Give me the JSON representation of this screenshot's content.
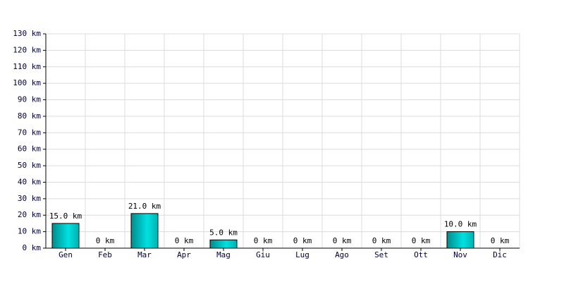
{
  "chart_data": {
    "type": "bar",
    "categories": [
      "Gen",
      "Feb",
      "Mar",
      "Apr",
      "Mag",
      "Giu",
      "Lug",
      "Ago",
      "Set",
      "Ott",
      "Nov",
      "Dic"
    ],
    "values": [
      15,
      0,
      21,
      0,
      5,
      0,
      0,
      0,
      0,
      0,
      10,
      0
    ],
    "value_labels": [
      "15.0 km",
      "0 km",
      "21.0 km",
      "0 km",
      "5.0 km",
      "0 km",
      "0 km",
      "0 km",
      "0 km",
      "0 km",
      "10.0 km",
      "0 km"
    ],
    "color": "#00e0e0",
    "ylim": [
      0,
      130
    ],
    "yticks": [
      {
        "value": 0,
        "label": "0 km"
      },
      {
        "value": 10,
        "label": "10 km"
      },
      {
        "value": 20,
        "label": "20 km"
      },
      {
        "value": 30,
        "label": "30 km"
      },
      {
        "value": 40,
        "label": "40 km"
      },
      {
        "value": 50,
        "label": "50 km"
      },
      {
        "value": 60,
        "label": "60 km"
      },
      {
        "value": 70,
        "label": "70 km"
      },
      {
        "value": 80,
        "label": "80 km"
      },
      {
        "value": 90,
        "label": "90 km"
      },
      {
        "value": 100,
        "label": "100 km"
      },
      {
        "value": 110,
        "label": "110 km"
      },
      {
        "value": 120,
        "label": "120 km"
      },
      {
        "value": 130,
        "label": "130 km"
      }
    ],
    "grid": true
  }
}
